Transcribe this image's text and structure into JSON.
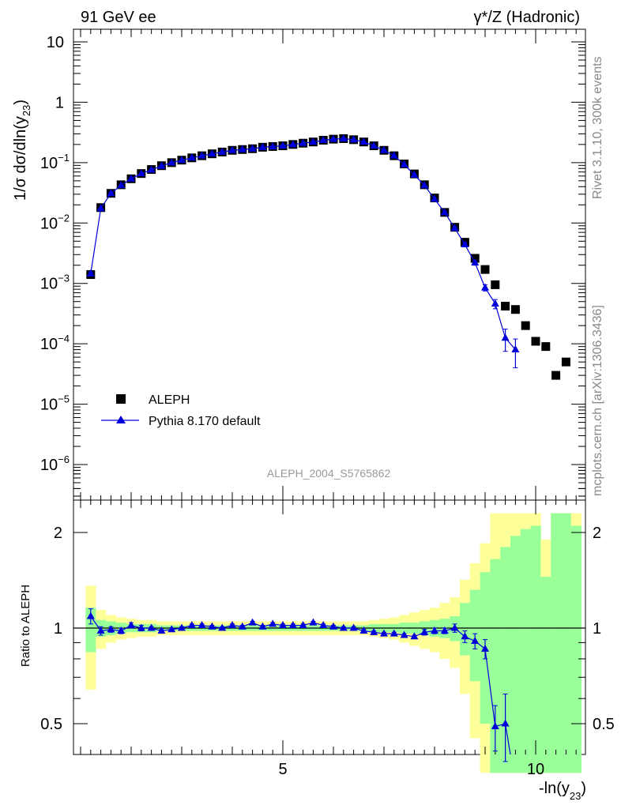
{
  "header": {
    "left": "91 GeV ee",
    "right": "γ*/Z (Hadronic)"
  },
  "side_labels": {
    "rivet": "Rivet 3.1.10,  300k events",
    "mcplots": "mcplots.cern.ch [arXiv:1306.3436]"
  },
  "analysis_id": "ALEPH_2004_S5765862",
  "colors": {
    "data": "#000000",
    "mc": "#0000dd",
    "band_inner": "#99ff99",
    "band_outer": "#ffff99"
  },
  "chart_data": [
    {
      "type": "scatter",
      "ylabel": "1/σ  dσ/dln(y23)",
      "yscale": "log",
      "xlim": [
        1.0,
        11.0
      ],
      "ylim": [
        3e-07,
        20
      ],
      "ytick_labels": [
        "10",
        "1",
        "10^-1",
        "10^-2",
        "10^-3",
        "10^-4",
        "10^-5",
        "10^-6"
      ],
      "legend_position": "lower-left",
      "series": [
        {
          "name": "ALEPH",
          "marker": "square",
          "x": [
            1.2,
            1.4,
            1.6,
            1.8,
            2.0,
            2.2,
            2.4,
            2.6,
            2.8,
            3.0,
            3.2,
            3.4,
            3.6,
            3.8,
            4.0,
            4.2,
            4.4,
            4.6,
            4.8,
            5.0,
            5.2,
            5.4,
            5.6,
            5.8,
            6.0,
            6.2,
            6.4,
            6.6,
            6.8,
            7.0,
            7.2,
            7.4,
            7.6,
            7.8,
            8.0,
            8.2,
            8.4,
            8.6,
            8.8,
            9.0,
            9.2,
            9.4,
            9.6,
            9.8,
            10.0,
            10.2,
            10.4,
            10.6
          ],
          "y": [
            0.0014,
            0.018,
            0.031,
            0.043,
            0.054,
            0.066,
            0.077,
            0.089,
            0.1,
            0.11,
            0.12,
            0.13,
            0.14,
            0.15,
            0.16,
            0.165,
            0.17,
            0.18,
            0.185,
            0.19,
            0.2,
            0.21,
            0.22,
            0.235,
            0.245,
            0.25,
            0.24,
            0.22,
            0.19,
            0.16,
            0.13,
            0.095,
            0.065,
            0.043,
            0.026,
            0.015,
            0.0085,
            0.0048,
            0.0026,
            0.0017,
            0.00095,
            0.00042,
            0.00037,
            0.0002,
            0.00011,
            9e-05,
            3e-05,
            5e-05
          ]
        },
        {
          "name": "Pythia 8.170 default",
          "marker": "triangle",
          "x": [
            1.2,
            1.4,
            1.6,
            1.8,
            2.0,
            2.2,
            2.4,
            2.6,
            2.8,
            3.0,
            3.2,
            3.4,
            3.6,
            3.8,
            4.0,
            4.2,
            4.4,
            4.6,
            4.8,
            5.0,
            5.2,
            5.4,
            5.6,
            5.8,
            6.0,
            6.2,
            6.4,
            6.6,
            6.8,
            7.0,
            7.2,
            7.4,
            7.6,
            7.8,
            8.0,
            8.2,
            8.4,
            8.6,
            8.8,
            9.0,
            9.2,
            9.4,
            9.6
          ],
          "y": [
            0.00145,
            0.0175,
            0.031,
            0.042,
            0.054,
            0.066,
            0.076,
            0.088,
            0.1,
            0.11,
            0.12,
            0.13,
            0.14,
            0.15,
            0.16,
            0.165,
            0.17,
            0.18,
            0.185,
            0.19,
            0.2,
            0.21,
            0.22,
            0.235,
            0.245,
            0.25,
            0.24,
            0.22,
            0.19,
            0.16,
            0.13,
            0.093,
            0.063,
            0.042,
            0.025,
            0.015,
            0.0082,
            0.0044,
            0.0022,
            0.00085,
            0.00046,
            0.000125,
            8e-05
          ],
          "yerr": [
            0.0001,
            0.0004,
            0.0005,
            0.0006,
            0.0008,
            0.0009,
            0.001,
            0.001,
            0.0012,
            0.0013,
            0.0014,
            0.0015,
            0.0016,
            0.0016,
            0.0017,
            0.0017,
            0.0018,
            0.0018,
            0.0019,
            0.0019,
            0.002,
            0.002,
            0.0021,
            0.0022,
            0.0022,
            0.0022,
            0.0022,
            0.0021,
            0.002,
            0.0018,
            0.0016,
            0.0014,
            0.0012,
            0.001,
            0.0008,
            0.0006,
            0.0004,
            0.0003,
            0.0002,
            0.0001,
            8e-05,
            5e-05,
            4e-05
          ]
        }
      ]
    },
    {
      "type": "scatter",
      "xlabel": "-ln(y23)",
      "ylabel": "Ratio to ALEPH",
      "xlim": [
        1.0,
        11.0
      ],
      "ylim": [
        0.35,
        2.3
      ],
      "xtick_labels": [
        "5",
        "10"
      ],
      "ytick_labels": [
        "0.5",
        "1",
        "2"
      ],
      "reference_line": 1,
      "bands": {
        "x_edges": [
          1.1,
          1.3,
          1.5,
          1.7,
          1.9,
          2.1,
          2.3,
          2.5,
          2.7,
          2.9,
          3.1,
          3.3,
          3.5,
          3.7,
          3.9,
          4.1,
          4.3,
          4.5,
          4.7,
          4.9,
          5.1,
          5.3,
          5.5,
          5.7,
          5.9,
          6.1,
          6.3,
          6.5,
          6.7,
          6.9,
          7.1,
          7.3,
          7.5,
          7.7,
          7.9,
          8.1,
          8.3,
          8.5,
          8.7,
          8.9,
          9.1,
          9.3,
          9.5,
          9.7,
          9.9,
          10.1,
          10.3,
          10.5,
          10.7,
          10.9
        ],
        "inner_low": [
          0.84,
          0.94,
          0.95,
          0.96,
          0.97,
          0.97,
          0.97,
          0.98,
          0.98,
          0.98,
          0.98,
          0.98,
          0.98,
          0.98,
          0.98,
          0.98,
          0.98,
          0.98,
          0.98,
          0.98,
          0.98,
          0.98,
          0.98,
          0.98,
          0.98,
          0.98,
          0.98,
          0.98,
          0.97,
          0.97,
          0.97,
          0.96,
          0.96,
          0.95,
          0.94,
          0.93,
          0.91,
          0.82,
          0.68,
          0.5,
          0.35,
          0.35,
          0.35,
          0.35,
          0.35,
          0.35,
          0.35,
          0.35,
          0.35
        ],
        "inner_high": [
          1.16,
          1.06,
          1.05,
          1.04,
          1.03,
          1.03,
          1.03,
          1.02,
          1.02,
          1.02,
          1.02,
          1.02,
          1.02,
          1.02,
          1.02,
          1.02,
          1.02,
          1.02,
          1.02,
          1.02,
          1.02,
          1.02,
          1.02,
          1.02,
          1.02,
          1.02,
          1.02,
          1.02,
          1.03,
          1.03,
          1.03,
          1.04,
          1.04,
          1.05,
          1.06,
          1.07,
          1.09,
          1.2,
          1.32,
          1.5,
          1.65,
          1.8,
          1.95,
          2.05,
          2.1,
          1.45,
          2.3,
          2.3,
          2.1
        ],
        "outer_low": [
          0.64,
          0.86,
          0.9,
          0.92,
          0.93,
          0.94,
          0.94,
          0.95,
          0.95,
          0.95,
          0.95,
          0.95,
          0.95,
          0.95,
          0.95,
          0.95,
          0.95,
          0.95,
          0.95,
          0.95,
          0.95,
          0.95,
          0.95,
          0.95,
          0.95,
          0.95,
          0.95,
          0.95,
          0.94,
          0.93,
          0.92,
          0.9,
          0.88,
          0.86,
          0.84,
          0.8,
          0.75,
          0.62,
          0.45,
          0.35,
          0.35,
          0.35,
          0.35,
          0.35,
          0.35,
          0.35,
          0.35,
          0.35,
          0.35
        ],
        "outer_high": [
          1.36,
          1.14,
          1.1,
          1.08,
          1.07,
          1.06,
          1.06,
          1.05,
          1.05,
          1.05,
          1.05,
          1.05,
          1.05,
          1.05,
          1.05,
          1.05,
          1.05,
          1.05,
          1.05,
          1.05,
          1.05,
          1.05,
          1.05,
          1.05,
          1.05,
          1.05,
          1.05,
          1.05,
          1.06,
          1.07,
          1.08,
          1.1,
          1.12,
          1.14,
          1.16,
          1.2,
          1.25,
          1.42,
          1.6,
          1.85,
          2.3,
          2.3,
          2.3,
          2.3,
          2.3,
          1.9,
          2.3,
          2.3,
          2.3
        ]
      },
      "series": [
        {
          "name": "Pythia 8.170 default",
          "x": [
            1.2,
            1.4,
            1.6,
            1.8,
            2.0,
            2.2,
            2.4,
            2.6,
            2.8,
            3.0,
            3.2,
            3.4,
            3.6,
            3.8,
            4.0,
            4.2,
            4.4,
            4.6,
            4.8,
            5.0,
            5.2,
            5.4,
            5.6,
            5.8,
            6.0,
            6.2,
            6.4,
            6.6,
            6.8,
            7.0,
            7.2,
            7.4,
            7.6,
            7.8,
            8.0,
            8.2,
            8.4,
            8.6,
            8.8,
            9.0,
            9.2,
            9.4
          ],
          "y": [
            1.09,
            0.98,
            0.99,
            0.98,
            1.02,
            1.0,
            1.0,
            0.98,
            0.99,
            1.0,
            1.02,
            1.02,
            1.01,
            1.0,
            1.02,
            1.01,
            1.04,
            1.01,
            1.03,
            1.02,
            1.02,
            1.02,
            1.04,
            1.02,
            1.01,
            1.0,
            1.0,
            0.98,
            0.97,
            0.96,
            0.96,
            0.95,
            0.94,
            0.97,
            0.98,
            0.98,
            1.0,
            0.94,
            0.91,
            0.86,
            0.49,
            0.5
          ],
          "yerr": [
            0.06,
            0.03,
            0.02,
            0.02,
            0.02,
            0.02,
            0.01,
            0.01,
            0.01,
            0.01,
            0.01,
            0.01,
            0.01,
            0.01,
            0.01,
            0.01,
            0.01,
            0.01,
            0.01,
            0.01,
            0.01,
            0.01,
            0.01,
            0.01,
            0.01,
            0.01,
            0.01,
            0.01,
            0.01,
            0.01,
            0.01,
            0.01,
            0.01,
            0.02,
            0.02,
            0.02,
            0.03,
            0.04,
            0.05,
            0.06,
            0.08,
            0.12
          ]
        }
      ]
    }
  ]
}
